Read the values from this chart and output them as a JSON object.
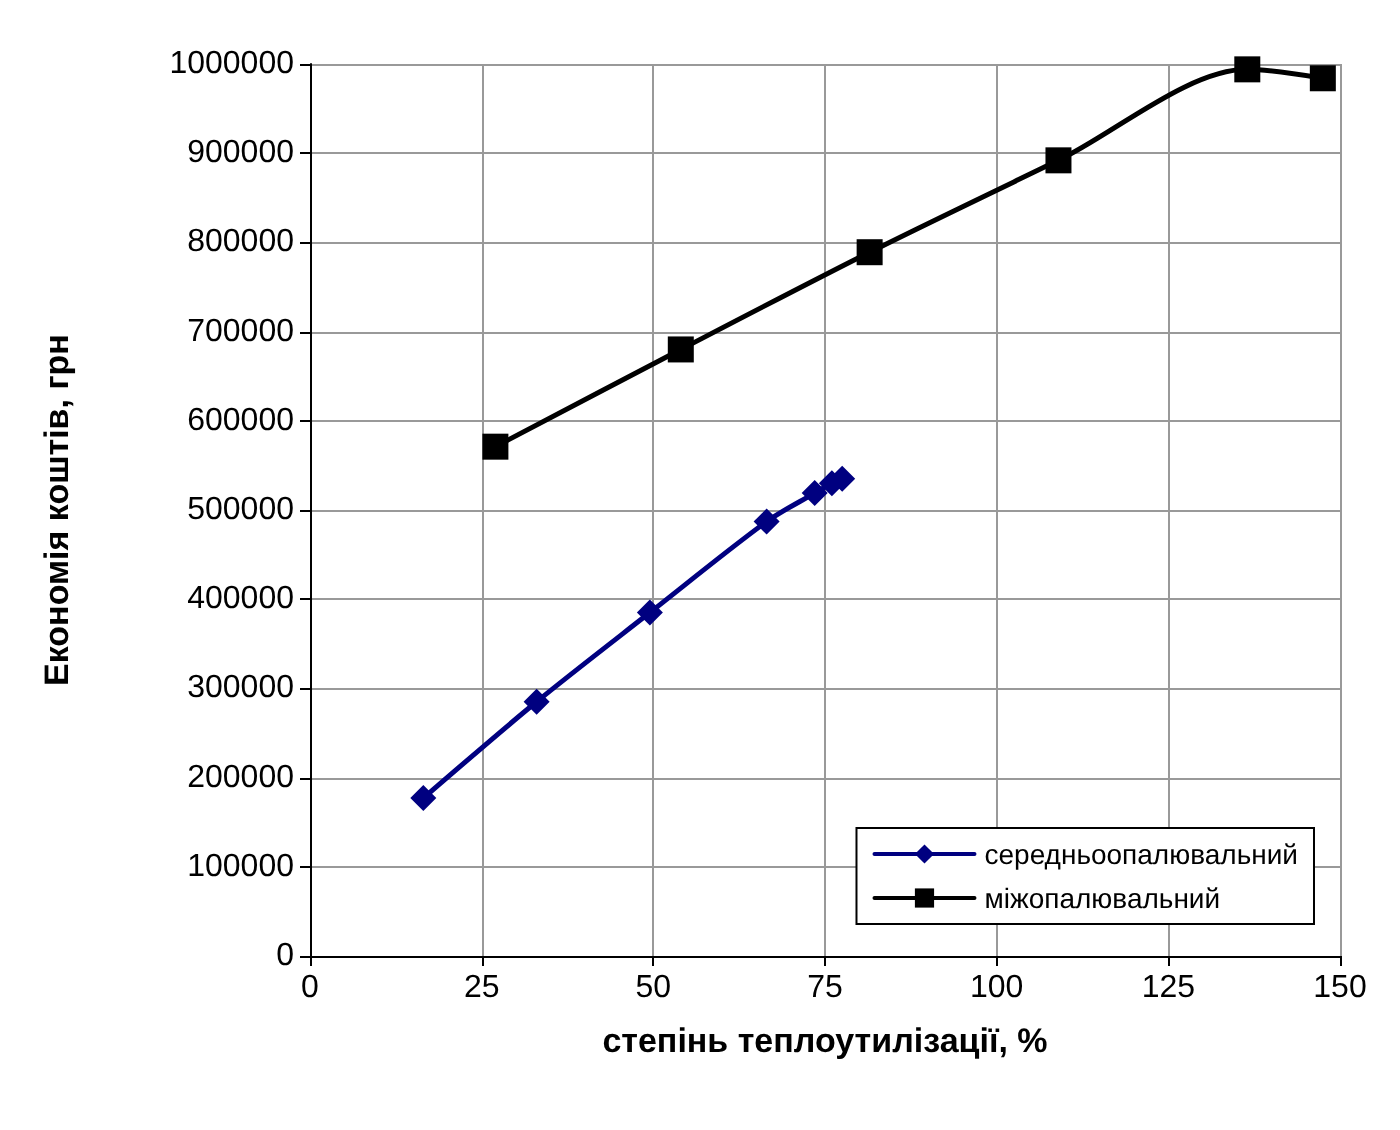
{
  "chart_data": {
    "type": "line",
    "xlabel": "степінь теплоутилізації, %",
    "ylabel": "Економія коштів, грн",
    "xlim": [
      0,
      150
    ],
    "xticks": [
      0,
      25,
      50,
      75,
      100,
      125,
      150
    ],
    "ylim": [
      0,
      1000000
    ],
    "yticks": [
      0,
      100000,
      200000,
      300000,
      400000,
      500000,
      600000,
      700000,
      800000,
      900000,
      1000000
    ],
    "grid": true,
    "legend": "bottom right",
    "series": [
      {
        "name": "середньоопалювальний",
        "color": "#000080",
        "marker": "diamond",
        "x": [
          16.5,
          33,
          49.5,
          66.5,
          73.5,
          76,
          77.5
        ],
        "values": [
          177000,
          285000,
          385000,
          487000,
          519000,
          530000,
          535000
        ]
      },
      {
        "name": "міжопалювальний",
        "color": "#000000",
        "marker": "square",
        "x": [
          27,
          54,
          81.5,
          109,
          136.5,
          147.5
        ],
        "values": [
          571000,
          680000,
          789000,
          892000,
          994000,
          984000
        ]
      }
    ]
  }
}
